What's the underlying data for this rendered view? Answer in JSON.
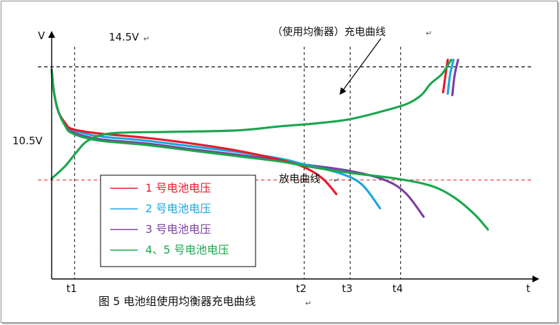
{
  "chart_data": {
    "type": "line",
    "caption": "图 5 电池组使用均衡器充电曲线",
    "y_axis_label": "V",
    "x_axis_label": "t",
    "reference_lines": [
      {
        "label": "14.5V",
        "value": 14.5,
        "style": "dashed",
        "color": "#000000"
      },
      {
        "label": "10.5V",
        "value": 10.5,
        "style": "dashed",
        "color": "#e8292f"
      }
    ],
    "time_markers": [
      {
        "label": "t1",
        "t": 1.0
      },
      {
        "label": "t2",
        "t": 11.0
      },
      {
        "label": "t3",
        "t": 13.0
      },
      {
        "label": "t4",
        "t": 15.2
      }
    ],
    "annotations": [
      {
        "text": "（使用均衡器）充电曲线"
      },
      {
        "text": "放电曲线"
      }
    ],
    "xlim": [
      0,
      21
    ],
    "ylim": [
      7.0,
      15.6
    ],
    "series": [
      {
        "name": "1 号电池电压",
        "color": "#e8182a",
        "discharge": [
          [
            0,
            14.4
          ],
          [
            0.1,
            13.6
          ],
          [
            0.3,
            12.9
          ],
          [
            0.6,
            12.5
          ],
          [
            0.9,
            12.3
          ],
          [
            2,
            12.15
          ],
          [
            4,
            12.0
          ],
          [
            6,
            11.8
          ],
          [
            8,
            11.55
          ],
          [
            10,
            11.2
          ],
          [
            11,
            10.95
          ],
          [
            11.8,
            10.55
          ],
          [
            12.4,
            10.0
          ]
        ],
        "charge": [
          [
            17.05,
            13.6
          ],
          [
            17.15,
            14.2
          ],
          [
            17.25,
            14.75
          ]
        ]
      },
      {
        "name": "2 号电池电压",
        "color": "#1ba6df",
        "discharge": [
          [
            0,
            14.4
          ],
          [
            0.1,
            13.6
          ],
          [
            0.3,
            12.9
          ],
          [
            0.6,
            12.5
          ],
          [
            0.9,
            12.28
          ],
          [
            2,
            12.05
          ],
          [
            4,
            11.9
          ],
          [
            6,
            11.7
          ],
          [
            8,
            11.5
          ],
          [
            10,
            11.25
          ],
          [
            11,
            11.05
          ],
          [
            12.5,
            10.75
          ],
          [
            13.5,
            10.35
          ],
          [
            14.3,
            9.5
          ]
        ],
        "charge": [
          [
            17.25,
            13.55
          ],
          [
            17.35,
            14.2
          ],
          [
            17.5,
            14.75
          ]
        ]
      },
      {
        "name": "3 号电池电压",
        "color": "#7b3fa0",
        "discharge": [
          [
            0,
            14.4
          ],
          [
            0.1,
            13.6
          ],
          [
            0.3,
            12.9
          ],
          [
            0.6,
            12.45
          ],
          [
            0.9,
            12.2
          ],
          [
            2,
            11.95
          ],
          [
            4,
            11.8
          ],
          [
            6,
            11.6
          ],
          [
            8,
            11.4
          ],
          [
            10,
            11.2
          ],
          [
            11,
            11.05
          ],
          [
            13,
            10.82
          ],
          [
            14.5,
            10.5
          ],
          [
            15.4,
            10.05
          ],
          [
            16.2,
            9.2
          ]
        ],
        "charge": [
          [
            17.45,
            13.5
          ],
          [
            17.55,
            14.2
          ],
          [
            17.7,
            14.75
          ]
        ]
      },
      {
        "name": "4、5 号电池电压",
        "color": "#1aa64d",
        "discharge": [
          [
            0,
            14.4
          ],
          [
            0.1,
            13.6
          ],
          [
            0.3,
            12.9
          ],
          [
            0.6,
            12.4
          ],
          [
            0.9,
            12.15
          ],
          [
            2,
            11.9
          ],
          [
            4,
            11.75
          ],
          [
            6,
            11.55
          ],
          [
            8,
            11.35
          ],
          [
            10,
            11.15
          ],
          [
            11,
            11.0
          ],
          [
            13,
            10.75
          ],
          [
            15,
            10.55
          ],
          [
            16.5,
            10.3
          ],
          [
            17.5,
            9.9
          ],
          [
            18.4,
            9.3
          ],
          [
            19,
            8.75
          ]
        ],
        "charge": [
          [
            0,
            10.55
          ],
          [
            0.6,
            11.0
          ],
          [
            1.1,
            11.5
          ],
          [
            1.6,
            11.9
          ],
          [
            2.6,
            12.15
          ],
          [
            5,
            12.2
          ],
          [
            8,
            12.25
          ],
          [
            10,
            12.4
          ],
          [
            11.5,
            12.5
          ],
          [
            13,
            12.65
          ],
          [
            14.5,
            12.95
          ],
          [
            15.5,
            13.2
          ],
          [
            16.1,
            13.5
          ],
          [
            16.5,
            13.9
          ],
          [
            17.0,
            14.25
          ],
          [
            17.4,
            14.75
          ]
        ]
      }
    ],
    "legend": {
      "position": "bottom-left"
    }
  }
}
